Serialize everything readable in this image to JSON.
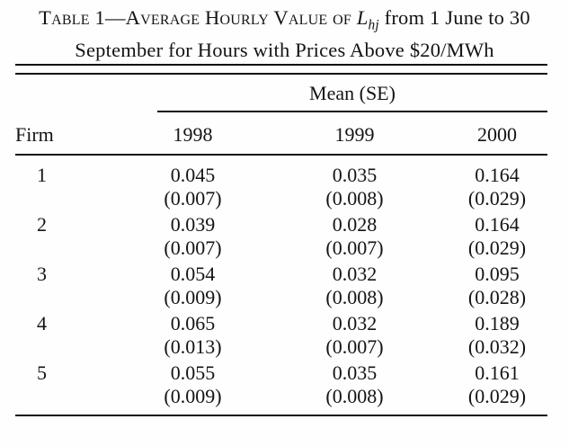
{
  "title": {
    "smallcaps_part": "Table 1—Average Hourly Value of ",
    "variable": "L",
    "variable_sub": "hj",
    "rest_line1": " from 1 June",
    "line2": "to 30 September for Hours with Prices Above $20/MWh"
  },
  "table": {
    "group_header": "Mean (SE)",
    "columns": {
      "firm": "Firm",
      "y1998": "1998",
      "y1999": "1999",
      "y2000": "2000"
    },
    "rows": [
      {
        "firm": "1",
        "values": [
          "0.045",
          "0.035",
          "0.164"
        ],
        "se": [
          "(0.007)",
          "(0.008)",
          "(0.029)"
        ]
      },
      {
        "firm": "2",
        "values": [
          "0.039",
          "0.028",
          "0.164"
        ],
        "se": [
          "(0.007)",
          "(0.007)",
          "(0.029)"
        ]
      },
      {
        "firm": "3",
        "values": [
          "0.054",
          "0.032",
          "0.095"
        ],
        "se": [
          "(0.009)",
          "(0.008)",
          "(0.028)"
        ]
      },
      {
        "firm": "4",
        "values": [
          "0.065",
          "0.032",
          "0.189"
        ],
        "se": [
          "(0.013)",
          "(0.007)",
          "(0.032)"
        ]
      },
      {
        "firm": "5",
        "values": [
          "0.055",
          "0.035",
          "0.161"
        ],
        "se": [
          "(0.009)",
          "(0.008)",
          "(0.029)"
        ]
      }
    ]
  },
  "chart_data": {
    "type": "table",
    "title": "Table 1—Average Hourly Value of L_hj from 1 June to 30 September for Hours with Prices Above $20/MWh",
    "group_header": "Mean (SE)",
    "categories": [
      "1998",
      "1999",
      "2000"
    ],
    "series": [
      {
        "name": "Firm 1",
        "mean": [
          0.045,
          0.035,
          0.164
        ],
        "se": [
          0.007,
          0.008,
          0.029
        ]
      },
      {
        "name": "Firm 2",
        "mean": [
          0.039,
          0.028,
          0.164
        ],
        "se": [
          0.007,
          0.007,
          0.029
        ]
      },
      {
        "name": "Firm 3",
        "mean": [
          0.054,
          0.032,
          0.095
        ],
        "se": [
          0.009,
          0.008,
          0.028
        ]
      },
      {
        "name": "Firm 4",
        "mean": [
          0.065,
          0.032,
          0.189
        ],
        "se": [
          0.013,
          0.007,
          0.032
        ]
      },
      {
        "name": "Firm 5",
        "mean": [
          0.055,
          0.035,
          0.161
        ],
        "se": [
          0.009,
          0.008,
          0.029
        ]
      }
    ]
  }
}
